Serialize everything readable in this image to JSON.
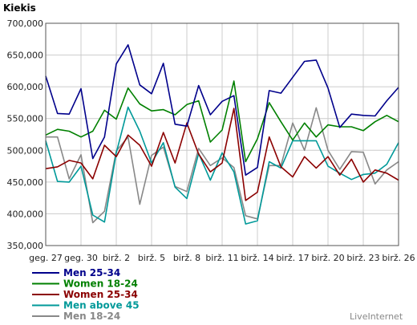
{
  "chart_data": {
    "type": "line",
    "title": "",
    "ylabel": "Kiekis",
    "xlabel": "",
    "ylim": [
      350000,
      700000
    ],
    "yticks": [
      350000,
      400000,
      450000,
      500000,
      550000,
      600000,
      650000,
      700000
    ],
    "ytick_labels": [
      "350,000",
      "400,000",
      "450,000",
      "500,000",
      "550,000",
      "600,000",
      "650,000",
      "700,000"
    ],
    "x_labels": [
      "geg. 27",
      "geg. 30",
      "birž. 2",
      "birž. 5",
      "birž. 8",
      "birž. 11",
      "birž. 14",
      "birž. 17",
      "birž. 20",
      "birž. 23",
      "birž. 26"
    ],
    "grid": true,
    "legend_position": "bottom-left",
    "series": [
      {
        "name": "Men 25-34",
        "color": "#00008b",
        "values": [
          617000,
          558000,
          557000,
          597000,
          487000,
          521000,
          636000,
          666000,
          603000,
          589000,
          637000,
          541000,
          538000,
          602000,
          556000,
          577000,
          586000,
          461000,
          473000,
          594000,
          590000,
          615000,
          640000,
          642000,
          598000,
          536000,
          557000,
          555000,
          554000,
          578000,
          599000
        ]
      },
      {
        "name": "Women 18-24",
        "color": "#008000",
        "values": [
          524000,
          533000,
          530000,
          521000,
          530000,
          563000,
          549000,
          598000,
          573000,
          562000,
          564000,
          556000,
          572000,
          578000,
          513000,
          532000,
          609000,
          482000,
          518000,
          575000,
          545000,
          516000,
          543000,
          521000,
          540000,
          537000,
          537000,
          531000,
          545000,
          555000,
          545000
        ]
      },
      {
        "name": "Women 25-34",
        "color": "#8b0000",
        "values": [
          471000,
          474000,
          484000,
          480000,
          455000,
          508000,
          490000,
          524000,
          508000,
          475000,
          528000,
          480000,
          543000,
          494000,
          466000,
          480000,
          566000,
          421000,
          434000,
          521000,
          474000,
          458000,
          490000,
          472000,
          490000,
          461000,
          486000,
          450000,
          469000,
          464000,
          453000
        ]
      },
      {
        "name": "Men above 45",
        "color": "#009999",
        "values": [
          515000,
          451000,
          450000,
          475000,
          398000,
          387000,
          496000,
          568000,
          530000,
          480000,
          512000,
          442000,
          424000,
          495000,
          453000,
          496000,
          466000,
          384000,
          389000,
          482000,
          472000,
          515000,
          515000,
          515000,
          475000,
          464000,
          454000,
          462000,
          464000,
          478000,
          512000
        ]
      },
      {
        "name": "Men 18-24",
        "color": "#888888",
        "values": [
          521000,
          521000,
          455000,
          493000,
          386000,
          404000,
          499000,
          521000,
          415000,
          492000,
          505000,
          443000,
          435000,
          503000,
          476000,
          488000,
          473000,
          397000,
          392000,
          476000,
          476000,
          543000,
          500000,
          567000,
          500000,
          470000,
          498000,
          497000,
          447000,
          469000,
          482000
        ]
      }
    ]
  },
  "brand": "LiveInternet"
}
